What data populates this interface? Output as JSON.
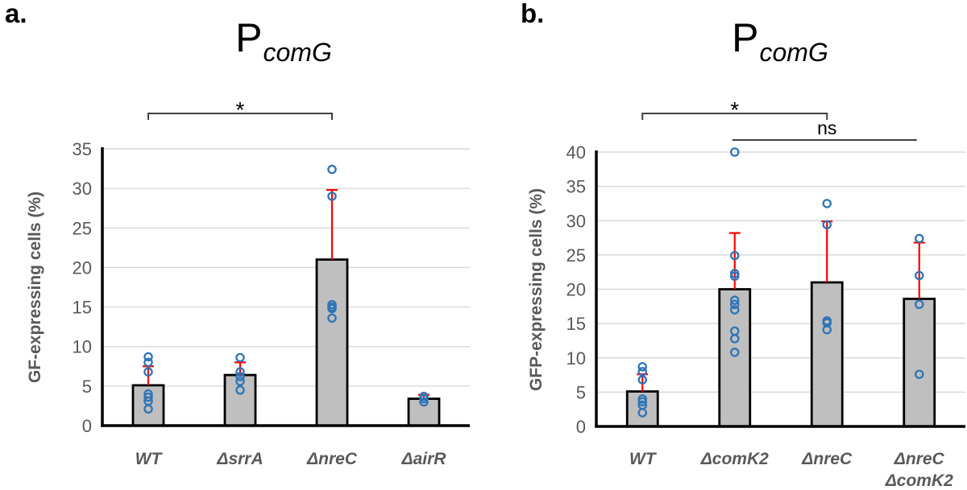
{
  "colors": {
    "bar_fill": "#bfbfbf",
    "bar_border": "#000000",
    "error_bar": "#ff0000",
    "data_point": "#2e75b6",
    "gridline": "#d9d9d9",
    "axis": "#000000",
    "tick_text": "#595959",
    "category_text": "#595959",
    "sig_line": "#404040",
    "sig_text": "#000000"
  },
  "chart_data": [
    {
      "type": "bar",
      "panel_label": "a.",
      "title_main": "P",
      "title_sub": "comG",
      "ylabel": "GF-expressing cells (%)",
      "ylim": [
        0,
        35
      ],
      "ytick_step": 5,
      "grid": true,
      "legend": "none",
      "categories": [
        "WT",
        "ΔsrrA",
        "ΔnreC",
        "ΔairR"
      ],
      "bar_means": [
        5.1,
        6.4,
        21.0,
        3.4
      ],
      "error_upper": [
        7.5,
        8.0,
        29.8,
        3.9
      ],
      "points": [
        [
          8.7,
          8.0,
          6.8,
          4.0,
          3.6,
          3.1,
          2.1
        ],
        [
          8.6,
          6.8,
          6.2,
          5.6,
          4.5
        ],
        [
          32.4,
          29.0,
          15.3,
          15.0,
          14.8,
          13.6
        ],
        [
          3.7,
          3.4,
          3.0
        ]
      ],
      "significance": [
        {
          "style": "bracket",
          "from": 0,
          "to": 2,
          "label": "*"
        }
      ]
    },
    {
      "type": "bar",
      "panel_label": "b.",
      "title_main": "P",
      "title_sub": "comG",
      "ylabel": "GFP-expressing cells (%)",
      "ylim": [
        0,
        40
      ],
      "ytick_step": 5,
      "grid": true,
      "legend": "none",
      "categories": [
        "WT",
        "ΔcomK2",
        "ΔnreC",
        "ΔnreC\nΔcomK2"
      ],
      "bar_means": [
        5.1,
        20.0,
        21.0,
        18.6
      ],
      "error_upper": [
        7.6,
        28.2,
        29.9,
        26.8
      ],
      "points": [
        [
          8.7,
          8.0,
          6.8,
          4.0,
          3.6,
          3.1,
          2.0
        ],
        [
          40.0,
          24.9,
          22.3,
          21.9,
          18.4,
          17.8,
          17.0,
          13.9,
          12.8,
          10.8
        ],
        [
          32.5,
          29.4,
          15.4,
          15.1,
          14.1
        ],
        [
          27.4,
          22.0,
          17.8,
          7.6
        ]
      ],
      "significance": [
        {
          "style": "bracket",
          "from": 0,
          "to": 2,
          "label": "*"
        },
        {
          "style": "line",
          "from": 1,
          "to": 3,
          "label": "ns"
        }
      ]
    }
  ]
}
